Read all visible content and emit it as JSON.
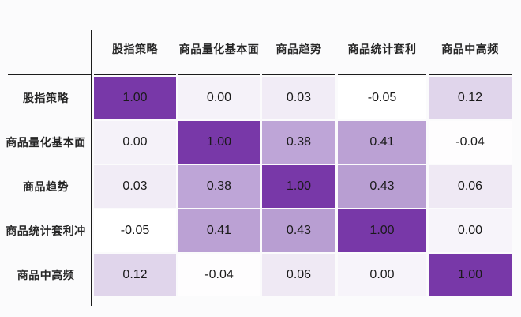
{
  "page": {
    "background_color": "#fbfbfc",
    "axis_color": "#1c1c1c",
    "value_text_color": "#1a1a1a",
    "label_text_color": "#262626"
  },
  "chart_data": {
    "type": "heatmap",
    "title": "",
    "x_categories": [
      "股指策略",
      "商品量化基本面",
      "商品趋势",
      "商品统计套利",
      "商品中高频"
    ],
    "y_categories": [
      "股指策略",
      "商品量化基本面",
      "商品趋势",
      "商品统计套利冲",
      "商品中高频"
    ],
    "values": [
      [
        1.0,
        0.0,
        0.03,
        -0.05,
        0.12
      ],
      [
        0.0,
        1.0,
        0.38,
        0.41,
        -0.04
      ],
      [
        0.03,
        0.38,
        1.0,
        0.43,
        0.06
      ],
      [
        -0.05,
        0.41,
        0.43,
        1.0,
        0.0
      ],
      [
        0.12,
        -0.04,
        0.06,
        0.0,
        1.0
      ]
    ],
    "value_format_decimals": 2,
    "cell_colors": [
      [
        "#7838a8",
        "#f5f2f9",
        "#f1ecf6",
        "#ffffff",
        "#e0d5eb"
      ],
      [
        "#f5f2f9",
        "#7838a8",
        "#bea5d7",
        "#bba1d4",
        "#fefdfe"
      ],
      [
        "#f1ecf6",
        "#bea5d7",
        "#7838a8",
        "#b89ed2",
        "#efe9f4"
      ],
      [
        "#ffffff",
        "#bba1d4",
        "#b89ed2",
        "#7838a8",
        "#f7f4fa"
      ],
      [
        "#e0d5eb",
        "#fefdfe",
        "#efe9f4",
        "#f7f4fa",
        "#7838a8"
      ]
    ],
    "colorscale": {
      "min": -0.05,
      "max": 1.0,
      "min_color": "#ffffff",
      "max_color": "#7838a8"
    },
    "legend": "none",
    "grid": "off",
    "layout": {
      "header_row_divider": true,
      "row_label_axis_line": true
    }
  }
}
